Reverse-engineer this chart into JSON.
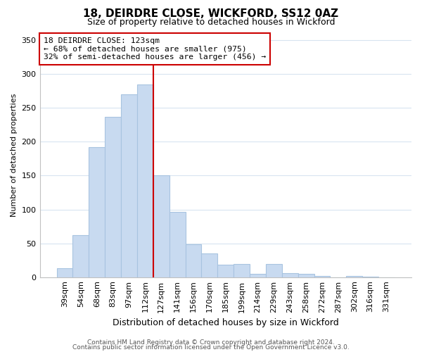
{
  "title": "18, DEIRDRE CLOSE, WICKFORD, SS12 0AZ",
  "subtitle": "Size of property relative to detached houses in Wickford",
  "xlabel": "Distribution of detached houses by size in Wickford",
  "ylabel": "Number of detached properties",
  "bar_labels": [
    "39sqm",
    "54sqm",
    "68sqm",
    "83sqm",
    "97sqm",
    "112sqm",
    "127sqm",
    "141sqm",
    "156sqm",
    "170sqm",
    "185sqm",
    "199sqm",
    "214sqm",
    "229sqm",
    "243sqm",
    "258sqm",
    "272sqm",
    "287sqm",
    "302sqm",
    "316sqm",
    "331sqm"
  ],
  "bar_values": [
    13,
    62,
    192,
    237,
    270,
    285,
    150,
    96,
    49,
    35,
    18,
    19,
    5,
    19,
    6,
    5,
    2,
    0,
    2,
    1,
    0
  ],
  "bar_color": "#c8daf0",
  "bar_edge_color": "#a8c4e0",
  "vline_color": "#cc0000",
  "vline_x_index": 6,
  "annotation_line1": "18 DEIRDRE CLOSE: 123sqm",
  "annotation_line2": "← 68% of detached houses are smaller (975)",
  "annotation_line3": "32% of semi-detached houses are larger (456) →",
  "annotation_box_facecolor": "#ffffff",
  "annotation_box_edgecolor": "#cc0000",
  "ylim": [
    0,
    360
  ],
  "yticks": [
    0,
    50,
    100,
    150,
    200,
    250,
    300,
    350
  ],
  "footer_line1": "Contains HM Land Registry data © Crown copyright and database right 2024.",
  "footer_line2": "Contains public sector information licensed under the Open Government Licence v3.0.",
  "background_color": "#ffffff",
  "grid_color": "#d8e4f0",
  "title_fontsize": 11,
  "subtitle_fontsize": 9,
  "xlabel_fontsize": 9,
  "ylabel_fontsize": 8,
  "tick_fontsize": 8,
  "footer_fontsize": 6.5
}
